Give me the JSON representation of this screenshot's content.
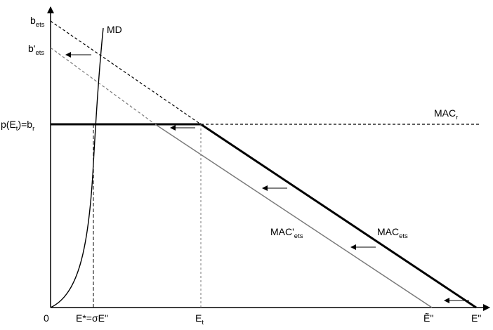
{
  "diagram": {
    "labels": {
      "b_ets": {
        "main": "b",
        "sub": "ets"
      },
      "b_ets_prime": {
        "main": "b'",
        "sub": "ets"
      },
      "price": {
        "pre": "p(E",
        "sub": "t",
        "post": ")=b",
        "sub2": "r"
      },
      "md": "MD",
      "mac_r": {
        "main": "MAC",
        "sub": "r"
      },
      "mac_ets": {
        "main": "MAC",
        "sub": "ets"
      },
      "mac_ets_prime": {
        "main": "MAC'",
        "sub": "ets"
      },
      "origin": "0",
      "e_star": "E*=σE\"",
      "e_t": {
        "main": "E",
        "sub": "t"
      },
      "e_tilde": "Ẽ\"",
      "e_dd": "E\""
    },
    "colors": {
      "line": "#000000",
      "gray_line": "#7a7a7a"
    }
  }
}
